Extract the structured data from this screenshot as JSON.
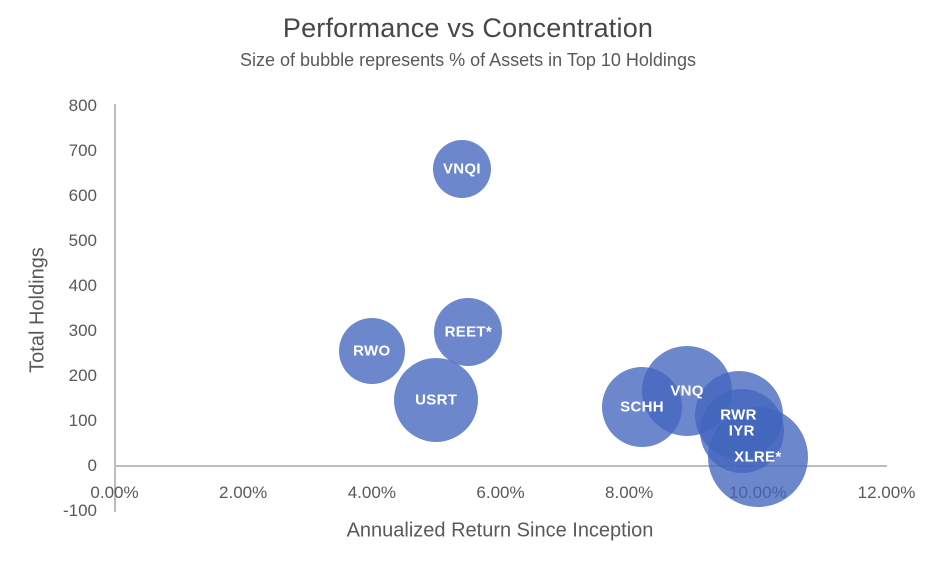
{
  "chart_data": {
    "type": "bubble",
    "title": "Performance vs Concentration",
    "subtitle": "Size of bubble represents % of Assets in Top 10 Holdings",
    "xlabel": "Annualized Return Since Inception",
    "ylabel": "Total Holdings",
    "xlim": [
      0,
      12
    ],
    "ylim": [
      -100,
      800
    ],
    "grid": "off",
    "legend": "none",
    "x_ticks": [
      {
        "value": 0,
        "label": "0.00%"
      },
      {
        "value": 2,
        "label": "2.00%"
      },
      {
        "value": 4,
        "label": "4.00%"
      },
      {
        "value": 6,
        "label": "6.00%"
      },
      {
        "value": 8,
        "label": "8.00%"
      },
      {
        "value": 10,
        "label": "10.00%"
      },
      {
        "value": 12,
        "label": "12.00%"
      }
    ],
    "y_ticks": [
      {
        "value": 800,
        "label": "800"
      },
      {
        "value": 700,
        "label": "700"
      },
      {
        "value": 600,
        "label": "600"
      },
      {
        "value": 500,
        "label": "500"
      },
      {
        "value": 400,
        "label": "400"
      },
      {
        "value": 300,
        "label": "300"
      },
      {
        "value": 200,
        "label": "200"
      },
      {
        "value": 100,
        "label": "100"
      },
      {
        "value": 0,
        "label": "0"
      },
      {
        "value": -100,
        "label": "-100"
      }
    ],
    "bubble_color_rgb": [
      67,
      101,
      190
    ],
    "bubble_opacity": 0.78,
    "label_color": "#ffffff",
    "points": [
      {
        "label": "VNQI",
        "x": 5.4,
        "y": 660,
        "r": 29
      },
      {
        "label": "RWO",
        "x": 4.0,
        "y": 255,
        "r": 33
      },
      {
        "label": "REET*",
        "x": 5.5,
        "y": 298,
        "r": 34
      },
      {
        "label": "USRT",
        "x": 5.0,
        "y": 146,
        "r": 42
      },
      {
        "label": "SCHH",
        "x": 8.2,
        "y": 131,
        "r": 40
      },
      {
        "label": "VNQ",
        "x": 8.9,
        "y": 166,
        "r": 45
      },
      {
        "label": "RWR",
        "x": 9.7,
        "y": 114,
        "r": 44
      },
      {
        "label": "IYR",
        "x": 9.75,
        "y": 77,
        "r": 42
      },
      {
        "label": "XLRE*",
        "x": 10.0,
        "y": 20,
        "r": 50
      }
    ]
  }
}
